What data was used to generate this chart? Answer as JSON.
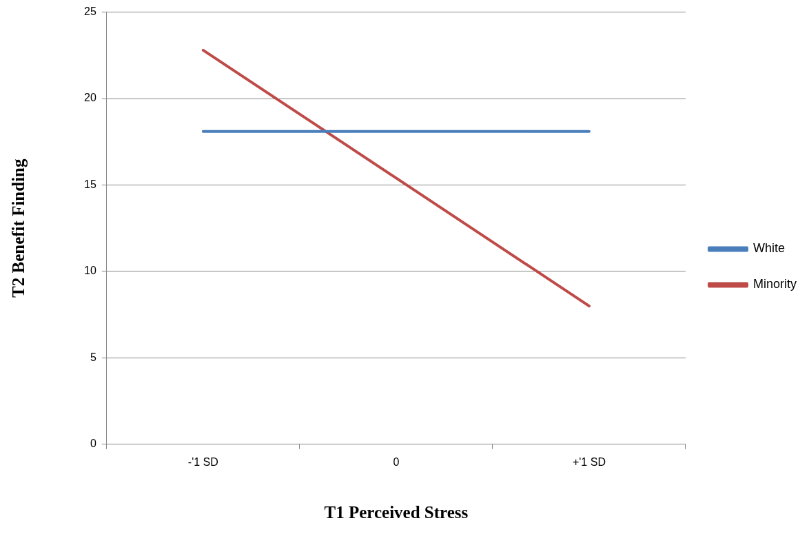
{
  "chart_data": {
    "type": "line",
    "xlabel": "T1 Perceived Stress",
    "ylabel": "T2 Benefit Finding",
    "categories": [
      "-'1 SD",
      "0",
      "+'1 SD"
    ],
    "series": [
      {
        "name": "White",
        "color": "#4a7ebb",
        "values": [
          18.1,
          18.1,
          18.1
        ]
      },
      {
        "name": "Minority",
        "color": "#be4b48",
        "values": [
          22.8,
          15.4,
          8.0
        ]
      }
    ],
    "ylim": [
      0,
      25
    ],
    "yticks": [
      0,
      5,
      10,
      15,
      20,
      25
    ],
    "grid": "y",
    "legend": "right",
    "marker": "none",
    "line_style": "solid"
  }
}
